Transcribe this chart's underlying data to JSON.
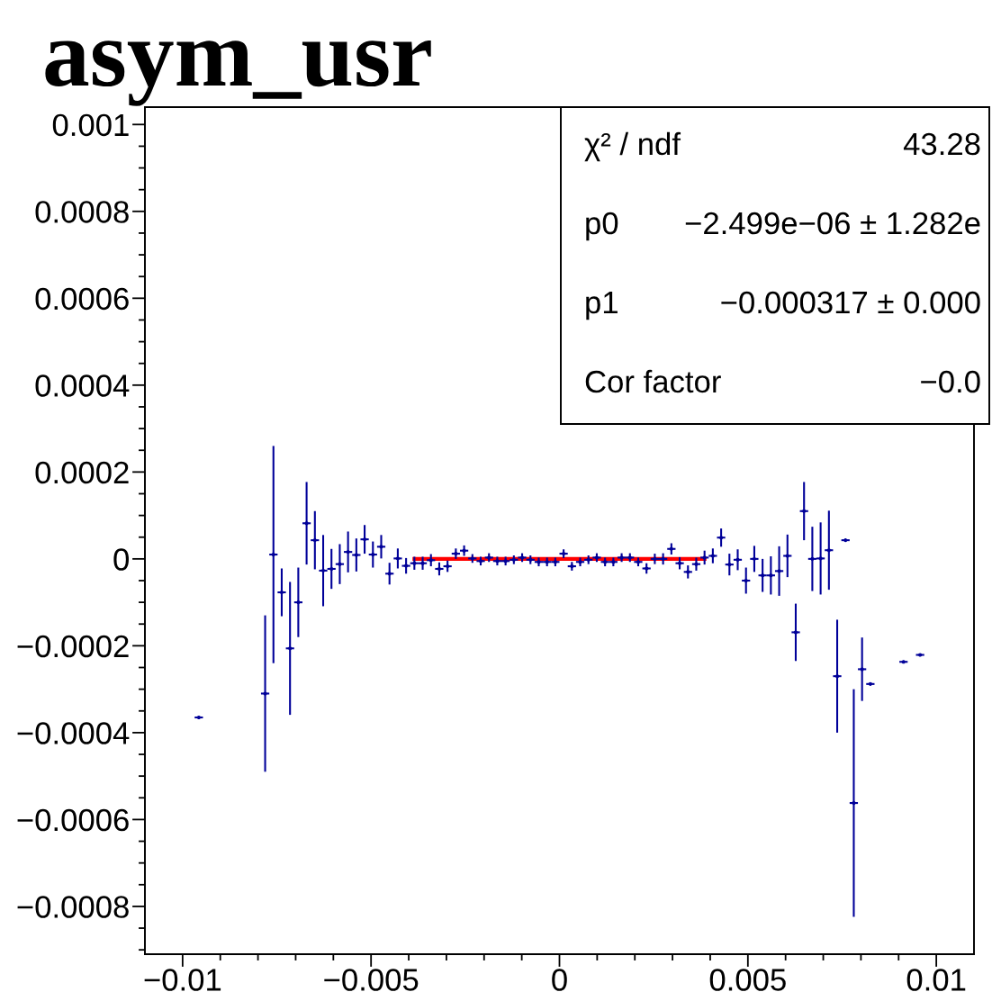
{
  "chart_data": {
    "type": "scatter",
    "title": "asym_usr",
    "xlim": [
      -0.011,
      0.011
    ],
    "ylim": [
      -0.00091,
      0.00104
    ],
    "xticks": [
      {
        "value": -0.01,
        "label": "−0.01"
      },
      {
        "value": -0.009,
        "label": null
      },
      {
        "value": -0.008,
        "label": null
      },
      {
        "value": -0.007,
        "label": null
      },
      {
        "value": -0.006,
        "label": null
      },
      {
        "value": -0.005,
        "label": "−0.005"
      },
      {
        "value": -0.004,
        "label": null
      },
      {
        "value": -0.003,
        "label": null
      },
      {
        "value": -0.002,
        "label": null
      },
      {
        "value": -0.001,
        "label": null
      },
      0,
      {
        "value": 0.001,
        "label": null
      },
      {
        "value": 0.002,
        "label": null
      },
      {
        "value": 0.003,
        "label": null
      },
      {
        "value": 0.004,
        "label": null
      },
      0.005,
      {
        "value": 0.006,
        "label": null
      },
      {
        "value": 0.007,
        "label": null
      },
      {
        "value": 0.008,
        "label": null
      },
      {
        "value": 0.009,
        "label": null
      },
      0.01
    ],
    "yticks": [
      {
        "value": -0.0009,
        "label": null
      },
      {
        "value": -0.00085,
        "label": null
      },
      {
        "value": -0.0008,
        "label": "−0.0008"
      },
      {
        "value": -0.00075,
        "label": null
      },
      {
        "value": -0.0007,
        "label": null
      },
      {
        "value": -0.00065,
        "label": null
      },
      {
        "value": -0.0006,
        "label": "−0.0006"
      },
      {
        "value": -0.00055,
        "label": null
      },
      {
        "value": -0.0005,
        "label": null
      },
      {
        "value": -0.00045,
        "label": null
      },
      {
        "value": -0.0004,
        "label": "−0.0004"
      },
      {
        "value": -0.00035,
        "label": null
      },
      {
        "value": -0.0003,
        "label": null
      },
      {
        "value": -0.00025,
        "label": null
      },
      {
        "value": -0.0002,
        "label": "−0.0002"
      },
      {
        "value": -0.00015,
        "label": null
      },
      {
        "value": -0.0001,
        "label": null
      },
      {
        "value": -5e-05,
        "label": null
      },
      0,
      {
        "value": 5e-05,
        "label": null
      },
      {
        "value": 0.0001,
        "label": null
      },
      {
        "value": 0.00015,
        "label": null
      },
      0.0002,
      {
        "value": 0.00025,
        "label": null
      },
      {
        "value": 0.0003,
        "label": null
      },
      {
        "value": 0.00035,
        "label": null
      },
      0.0004,
      {
        "value": 0.00045,
        "label": null
      },
      {
        "value": 0.0005,
        "label": null
      },
      {
        "value": 0.00055,
        "label": null
      },
      0.0006,
      {
        "value": 0.00065,
        "label": null
      },
      {
        "value": 0.0007,
        "label": null
      },
      {
        "value": 0.00075,
        "label": null
      },
      0.0008,
      {
        "value": 0.00085,
        "label": null
      },
      {
        "value": 0.0009,
        "label": null
      },
      {
        "value": 0.00095,
        "label": null
      },
      0.001
    ],
    "line_style": "solid",
    "annotations": [
      "χ² / ndf",
      "43.28",
      "p0",
      "−2.499e−06 ± 1.282e",
      "p1",
      "−0.000317 ± 0.000",
      "Cor factor",
      "−0.0"
    ],
    "series": [
      {
        "color": "#000099",
        "marker": "circle",
        "x": [
          -0.00957,
          -0.00781,
          -0.00759,
          -0.00737,
          -0.00715,
          -0.00693,
          -0.00671,
          -0.00649,
          -0.00627,
          -0.00605,
          -0.00583,
          -0.00561,
          -0.00539,
          -0.00517,
          -0.00495,
          -0.00473,
          -0.00451,
          -0.00429,
          -0.00407,
          -0.00385,
          -0.00363,
          -0.00341,
          -0.00319,
          -0.00297,
          -0.00275,
          -0.00253,
          -0.00231,
          -0.00209,
          -0.00187,
          -0.00165,
          -0.00143,
          -0.00121,
          -0.00099,
          -0.00077,
          -0.00055,
          -0.00033,
          -0.00011,
          0.00011,
          0.00033,
          0.00055,
          0.00077,
          0.00099,
          0.00121,
          0.00143,
          0.00165,
          0.00187,
          0.00209,
          0.00231,
          0.00253,
          0.00275,
          0.00297,
          0.00319,
          0.00341,
          0.00363,
          0.00385,
          0.00407,
          0.00429,
          0.00451,
          0.00473,
          0.00495,
          0.00517,
          0.00539,
          0.00561,
          0.00583,
          0.00605,
          0.00627,
          0.00649,
          0.00671,
          0.00693,
          0.00715,
          0.00737,
          0.00759,
          0.00781,
          0.00803,
          0.00825,
          0.00847,
          0.00913,
          0.00957
        ],
        "values": [
          -0.000365,
          -0.00031,
          1e-05,
          -7.7e-05,
          -0.000206,
          -0.0001,
          8.2e-05,
          4.3e-05,
          -2.7e-05,
          -2.3e-05,
          -1.2e-05,
          1.6e-05,
          9e-06,
          4.5e-05,
          1e-05,
          2.8e-05,
          -3.4e-05,
          1e-06,
          -1.6e-05,
          -1e-05,
          -1e-05,
          -3e-06,
          -2.3e-05,
          -1.7e-05,
          1.2e-05,
          1.9e-05,
          1e-06,
          -5e-06,
          3e-06,
          -5e-06,
          -5e-06,
          -2e-06,
          3e-06,
          -2e-06,
          -7e-06,
          -7e-06,
          -7e-06,
          1.2e-05,
          -1.7e-05,
          -7e-06,
          -2e-06,
          3e-06,
          -7e-06,
          -7e-06,
          3e-06,
          3e-06,
          -7e-06,
          -2.2e-05,
          0,
          0,
          2.3e-05,
          -1e-05,
          -3e-05,
          -1.2e-05,
          3e-06,
          7e-06,
          4.9e-05,
          -1.3e-05,
          -2e-06,
          -5e-05,
          0,
          -3.8e-05,
          -3.8e-05,
          -2.8e-05,
          7e-06,
          -0.000169,
          0.00011,
          0,
          1e-06,
          2e-05,
          -0.00027,
          4.3e-05,
          -0.000562,
          -0.000254,
          -0.000288,
          null,
          -0.000237,
          -0.000221
        ],
        "errors": [
          null,
          0.00018,
          0.00025,
          5.5e-05,
          0.000153,
          8e-05,
          9.5e-05,
          6.7e-05,
          8.2e-05,
          4.6e-05,
          4.6e-05,
          4.7e-05,
          3.8e-05,
          3.3e-05,
          3e-05,
          2.7e-05,
          2.5e-05,
          2.3e-05,
          1.8e-05,
          1.5e-05,
          1.5e-05,
          1.4e-05,
          1.5e-05,
          1.3e-05,
          1.2e-05,
          1.2e-05,
          1e-05,
          1e-05,
          1e-05,
          1e-05,
          1e-05,
          1e-05,
          1e-05,
          1e-05,
          1e-05,
          1e-05,
          1e-05,
          1e-05,
          1e-05,
          1e-05,
          1e-05,
          1e-05,
          1e-05,
          1e-05,
          1e-05,
          1e-05,
          1e-05,
          1.2e-05,
          1.2e-05,
          1.3e-05,
          1.3e-05,
          1.4e-05,
          1.5e-05,
          1.5e-05,
          1.6e-05,
          1.7e-05,
          2.1e-05,
          2.5e-05,
          2.4e-05,
          3e-05,
          3e-05,
          3.8e-05,
          4.4e-05,
          5.7e-05,
          4.9e-05,
          6.6e-05,
          6.7e-05,
          7.4e-05,
          8.3e-05,
          9.1e-05,
          0.00013,
          null,
          0.000262,
          7.3e-05,
          null,
          null,
          null,
          null
        ],
        "xerrors": [
          0.00011,
          0.00011,
          0.00011,
          0.00011,
          0.00011,
          0.00011,
          0.00011,
          0.00011,
          0.00011,
          0.00011,
          0.00011,
          0.00011,
          0.00011,
          0.00011,
          0.00011,
          0.00011,
          0.00011,
          0.00011,
          0.00011,
          0.00011,
          0.00011,
          0.00011,
          0.00011,
          0.00011,
          0.00011,
          0.00011,
          0.00011,
          0.00011,
          0.00011,
          0.00011,
          0.00011,
          0.00011,
          0.00011,
          0.00011,
          0.00011,
          0.00011,
          0.00011,
          0.00011,
          0.00011,
          0.00011,
          0.00011,
          0.00011,
          0.00011,
          0.00011,
          0.00011,
          0.00011,
          0.00011,
          0.00011,
          0.00011,
          0.00011,
          0.00011,
          0.00011,
          0.00011,
          0.00011,
          0.00011,
          0.00011,
          0.00011,
          0.00011,
          0.00011,
          0.00011,
          0.00011,
          0.00011,
          0.00011,
          0.00011,
          0.00011,
          0.00011,
          0.00011,
          0.00011,
          0.00011,
          0.00011,
          0.00011,
          0.00011,
          0.00011,
          0.00011,
          0.00011,
          null,
          0.00011,
          0.00011
        ]
      },
      {
        "type": "line",
        "color": "#ff0000",
        "x": [
          -0.0039,
          0.0039
        ],
        "values": [
          0,
          0
        ]
      }
    ]
  }
}
